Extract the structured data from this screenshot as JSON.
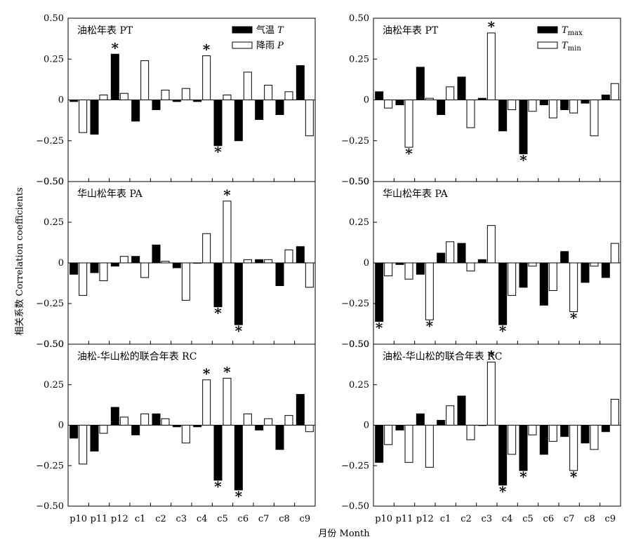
{
  "chart_data": {
    "type": "bar",
    "x_categories": [
      "p10",
      "p11",
      "p12",
      "c1",
      "c2",
      "c3",
      "c4",
      "c5",
      "c6",
      "c7",
      "c8",
      "c9"
    ],
    "xlabel": "月份 Month",
    "ylabel": "相关系数 Correlation coefficients",
    "ylim": [
      -0.5,
      0.5
    ],
    "y_ticks": [
      "0.50",
      "0.25",
      "0",
      "−0.25",
      "−0.50"
    ],
    "significance_marker": "*",
    "legends": [
      {
        "entries": [
          {
            "label": "气温 ",
            "symbol": "T",
            "subscript": "",
            "fill": "#000000"
          },
          {
            "label": "降雨 ",
            "symbol": "P",
            "subscript": "",
            "fill": "#ffffff"
          }
        ]
      },
      {
        "entries": [
          {
            "label": "",
            "symbol": "T",
            "subscript": "max",
            "fill": "#000000"
          },
          {
            "label": "",
            "symbol": "T",
            "subscript": "min",
            "fill": "#ffffff"
          }
        ]
      }
    ],
    "panels": [
      {
        "title": "油松年表 PT",
        "legend": 0,
        "series": [
          {
            "name": "气温 T",
            "fill": "#000000",
            "values": [
              -0.01,
              -0.21,
              0.28,
              -0.13,
              -0.06,
              -0.01,
              -0.01,
              -0.28,
              -0.25,
              -0.12,
              -0.09,
              0.21
            ],
            "significant": [
              false,
              false,
              true,
              false,
              false,
              false,
              false,
              true,
              false,
              false,
              false,
              false
            ]
          },
          {
            "name": "降雨 P",
            "fill": "#ffffff",
            "values": [
              -0.2,
              0.03,
              0.04,
              0.24,
              0.06,
              0.07,
              0.27,
              0.03,
              0.17,
              0.09,
              0.05,
              -0.22
            ],
            "significant": [
              false,
              false,
              false,
              false,
              false,
              false,
              true,
              false,
              false,
              false,
              false,
              false
            ]
          }
        ]
      },
      {
        "title": "油松年表 PT",
        "legend": 1,
        "series": [
          {
            "name": "Tmax",
            "fill": "#000000",
            "values": [
              0.05,
              -0.03,
              0.2,
              -0.09,
              0.14,
              0.01,
              -0.19,
              -0.33,
              -0.03,
              -0.06,
              -0.02,
              0.03
            ],
            "significant": [
              false,
              false,
              false,
              false,
              false,
              false,
              false,
              true,
              false,
              false,
              false,
              false
            ]
          },
          {
            "name": "Tmin",
            "fill": "#ffffff",
            "values": [
              -0.05,
              -0.29,
              0.01,
              0.08,
              -0.17,
              0.41,
              -0.06,
              -0.07,
              -0.11,
              -0.08,
              -0.22,
              0.1
            ],
            "significant": [
              false,
              true,
              false,
              false,
              false,
              true,
              false,
              false,
              false,
              false,
              false,
              false
            ]
          }
        ]
      },
      {
        "title": "华山松年表 PA",
        "legend": null,
        "series": [
          {
            "name": "气温 T",
            "fill": "#000000",
            "values": [
              -0.07,
              -0.06,
              -0.02,
              0.04,
              0.11,
              -0.03,
              0.0,
              -0.27,
              -0.38,
              0.02,
              -0.14,
              0.1
            ],
            "significant": [
              false,
              false,
              false,
              false,
              false,
              false,
              false,
              true,
              true,
              false,
              false,
              false
            ]
          },
          {
            "name": "降雨 P",
            "fill": "#ffffff",
            "values": [
              -0.2,
              -0.11,
              0.04,
              -0.09,
              0.01,
              -0.23,
              0.18,
              0.38,
              0.02,
              0.02,
              0.08,
              -0.15
            ],
            "significant": [
              false,
              false,
              false,
              false,
              false,
              false,
              false,
              true,
              false,
              false,
              false,
              false
            ]
          }
        ]
      },
      {
        "title": "华山松年表 PA",
        "legend": null,
        "series": [
          {
            "name": "Tmax",
            "fill": "#000000",
            "values": [
              -0.36,
              -0.01,
              -0.07,
              0.06,
              0.12,
              0.02,
              -0.38,
              -0.15,
              -0.26,
              0.07,
              -0.12,
              -0.09
            ],
            "significant": [
              true,
              false,
              false,
              false,
              false,
              false,
              true,
              false,
              false,
              false,
              false,
              false
            ]
          },
          {
            "name": "Tmin",
            "fill": "#ffffff",
            "values": [
              -0.08,
              -0.1,
              -0.35,
              0.13,
              -0.05,
              0.23,
              -0.2,
              -0.02,
              -0.17,
              -0.3,
              -0.02,
              0.12
            ],
            "significant": [
              false,
              false,
              true,
              false,
              false,
              false,
              false,
              false,
              false,
              true,
              false,
              false
            ]
          }
        ]
      },
      {
        "title": "油松-华山松的联合年表 RC",
        "legend": null,
        "series": [
          {
            "name": "气温 T",
            "fill": "#000000",
            "values": [
              -0.08,
              -0.16,
              0.11,
              -0.06,
              0.07,
              -0.01,
              -0.01,
              -0.34,
              -0.4,
              -0.03,
              -0.15,
              0.19
            ],
            "significant": [
              false,
              false,
              false,
              false,
              false,
              false,
              false,
              true,
              true,
              false,
              false,
              false
            ]
          },
          {
            "name": "降雨 P",
            "fill": "#ffffff",
            "values": [
              -0.24,
              -0.05,
              0.05,
              0.07,
              0.04,
              -0.11,
              0.28,
              0.29,
              0.07,
              0.04,
              0.06,
              -0.04
            ],
            "significant": [
              false,
              false,
              false,
              false,
              false,
              false,
              true,
              true,
              false,
              false,
              false,
              false
            ]
          }
        ]
      },
      {
        "title": "油松-华山松的联合年表 RC",
        "legend": null,
        "series": [
          {
            "name": "Tmax",
            "fill": "#000000",
            "values": [
              -0.23,
              -0.03,
              0.07,
              0.03,
              0.18,
              0.0,
              -0.37,
              -0.28,
              -0.18,
              -0.07,
              -0.11,
              -0.04
            ],
            "significant": [
              false,
              false,
              false,
              false,
              false,
              false,
              true,
              true,
              false,
              false,
              false,
              false
            ]
          },
          {
            "name": "Tmin",
            "fill": "#ffffff",
            "values": [
              -0.12,
              -0.23,
              -0.26,
              0.12,
              -0.09,
              0.39,
              -0.18,
              -0.06,
              -0.1,
              -0.28,
              -0.15,
              0.16
            ],
            "significant": [
              false,
              false,
              false,
              false,
              false,
              true,
              false,
              false,
              false,
              true,
              false,
              false
            ]
          }
        ]
      }
    ]
  }
}
